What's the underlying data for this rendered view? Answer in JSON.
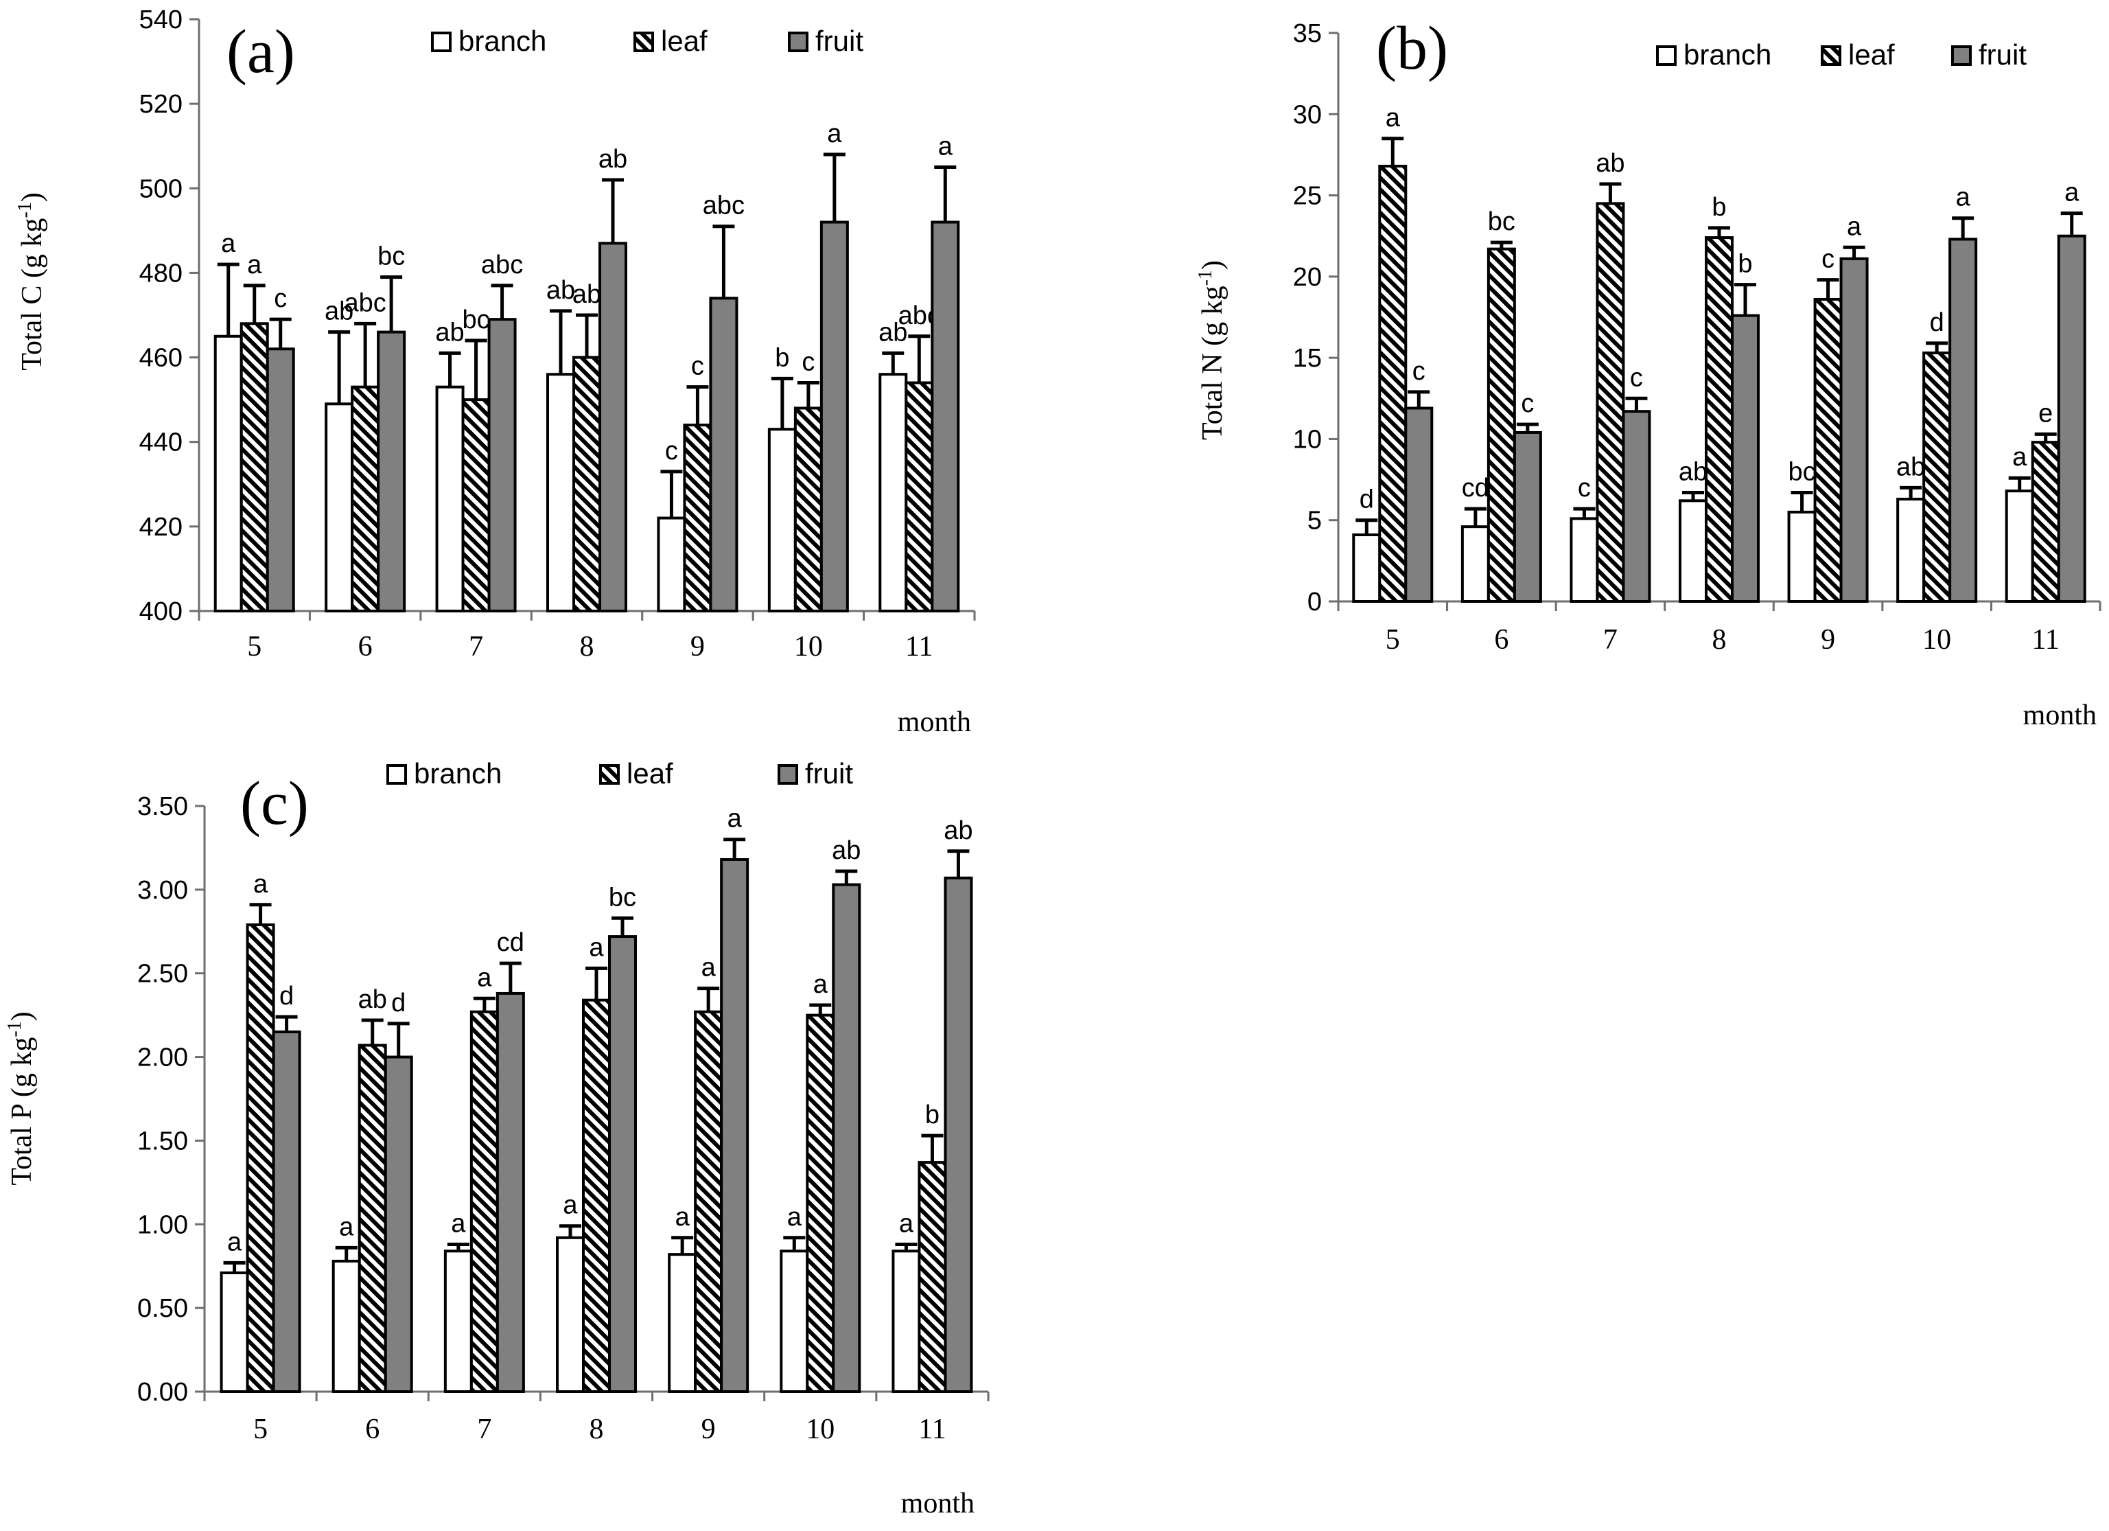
{
  "colors": {
    "fruit_fill": "#808080",
    "outline": "#000000",
    "branch_fill": "#ffffff",
    "axis": "#6e6e6e"
  },
  "chart_data": [
    {
      "type": "bar",
      "panel_label": "(a)",
      "ylabel": "Total  C  (g kg",
      "ylabel_sup": "-1",
      "ylabel_close": ")",
      "xlabel": "month",
      "ylim": [
        400,
        540
      ],
      "yticks": [
        "400",
        "420",
        "440",
        "460",
        "480",
        "500",
        "520",
        "540"
      ],
      "categories": [
        "5",
        "6",
        "7",
        "8",
        "9",
        "10",
        "11"
      ],
      "series": [
        {
          "name": "branch",
          "values": [
            465,
            449,
            453,
            456,
            422,
            443,
            456
          ],
          "errors": [
            17,
            17,
            8,
            15,
            11,
            12,
            5
          ],
          "letters": [
            "a",
            "ab",
            "ab",
            "ab",
            "c",
            "b",
            "ab"
          ]
        },
        {
          "name": "leaf",
          "values": [
            468,
            453,
            450,
            460,
            444,
            448,
            454
          ],
          "errors": [
            9,
            15,
            14,
            10,
            9,
            6,
            11
          ],
          "letters": [
            "a",
            "abc",
            "bc",
            "ab",
            "c",
            "c",
            "abc"
          ]
        },
        {
          "name": "fruit",
          "values": [
            462,
            466,
            469,
            487,
            474,
            492,
            492
          ],
          "errors": [
            7,
            13,
            8,
            15,
            17,
            16,
            13
          ],
          "letters": [
            "c",
            "bc",
            "abc",
            "ab",
            "abc",
            "a",
            "a"
          ]
        }
      ]
    },
    {
      "type": "bar",
      "panel_label": "(b)",
      "ylabel": "Total  N  (g kg",
      "ylabel_sup": "-1",
      "ylabel_close": ")",
      "xlabel": "month",
      "ylim": [
        0,
        35
      ],
      "yticks": [
        "0",
        "5",
        "10",
        "15",
        "20",
        "25",
        "30",
        "35"
      ],
      "categories": [
        "5",
        "6",
        "7",
        "8",
        "9",
        "10",
        "11"
      ],
      "series": [
        {
          "name": "branch",
          "values": [
            4.1,
            4.6,
            5.1,
            6.2,
            5.5,
            6.3,
            6.8
          ],
          "errors": [
            0.9,
            1.1,
            0.6,
            0.5,
            1.2,
            0.7,
            0.8
          ],
          "letters": [
            "d",
            "cd",
            "c",
            "ab",
            "bc",
            "ab",
            "a"
          ]
        },
        {
          "name": "leaf",
          "values": [
            26.8,
            21.7,
            24.5,
            22.4,
            18.6,
            15.3,
            9.8
          ],
          "errors": [
            1.7,
            0.4,
            1.2,
            0.6,
            1.2,
            0.6,
            0.5
          ],
          "letters": [
            "a",
            "bc",
            "ab",
            "b",
            "c",
            "d",
            "e"
          ]
        },
        {
          "name": "fruit",
          "values": [
            11.9,
            10.4,
            11.7,
            17.6,
            21.1,
            22.3,
            22.5
          ],
          "errors": [
            1.0,
            0.5,
            0.8,
            1.9,
            0.7,
            1.3,
            1.4
          ],
          "letters": [
            "c",
            "c",
            "c",
            "b",
            "a",
            "a",
            "a"
          ]
        }
      ]
    },
    {
      "type": "bar",
      "panel_label": "(c)",
      "ylabel": "Total P (g kg",
      "ylabel_sup": "-1",
      "ylabel_close": ")",
      "xlabel": "month",
      "ylim": [
        0,
        3.5
      ],
      "yticks": [
        "0.00",
        "0.50",
        "1.00",
        "1.50",
        "2.00",
        "2.50",
        "3.00",
        "3.50"
      ],
      "categories": [
        "5",
        "6",
        "7",
        "8",
        "9",
        "10",
        "11"
      ],
      "series": [
        {
          "name": "branch",
          "values": [
            0.71,
            0.78,
            0.84,
            0.92,
            0.82,
            0.84,
            0.84
          ],
          "errors": [
            0.06,
            0.08,
            0.04,
            0.07,
            0.1,
            0.08,
            0.04
          ],
          "letters": [
            "a",
            "a",
            "a",
            "a",
            "a",
            "a",
            "a"
          ]
        },
        {
          "name": "leaf",
          "values": [
            2.79,
            2.07,
            2.27,
            2.34,
            2.27,
            2.25,
            1.37
          ],
          "errors": [
            0.12,
            0.15,
            0.08,
            0.19,
            0.14,
            0.06,
            0.16
          ],
          "letters": [
            "a",
            "ab",
            "a",
            "a",
            "a",
            "a",
            "b"
          ]
        },
        {
          "name": "fruit",
          "values": [
            2.15,
            2.0,
            2.38,
            2.72,
            3.18,
            3.03,
            3.07
          ],
          "errors": [
            0.09,
            0.2,
            0.18,
            0.11,
            0.12,
            0.08,
            0.16
          ],
          "letters": [
            "d",
            "d",
            "cd",
            "bc",
            "a",
            "ab",
            "ab"
          ]
        }
      ]
    }
  ]
}
